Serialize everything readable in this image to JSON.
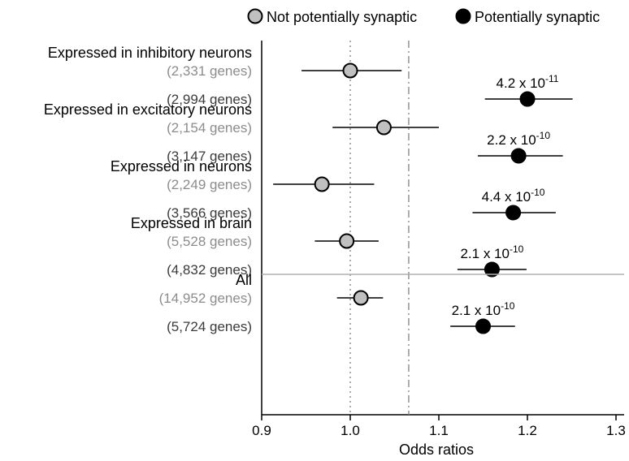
{
  "chart_data": {
    "type": "forest",
    "xlabel": "Odds ratios",
    "xlim": [
      0.9,
      1.31
    ],
    "xticks": [
      0.9,
      1.0,
      1.1,
      1.2,
      1.3
    ],
    "xtick_labels": [
      "0.9",
      "1.0",
      "1.1",
      "1.2",
      "1.3"
    ],
    "reference_lines": [
      {
        "x": 1.0,
        "style": "dotted"
      },
      {
        "x": 1.066,
        "style": "dash-dot"
      }
    ],
    "legend": {
      "placement": "top",
      "entries": [
        {
          "label": "Not potentially synaptic",
          "color": "#c0c0c0"
        },
        {
          "label": "Potentially synaptic",
          "color": "#000000"
        }
      ]
    },
    "groups": [
      {
        "label": "Expressed in inhibitory neurons",
        "rows": [
          {
            "series": "Not potentially synaptic",
            "count_label": "(2,331 genes)",
            "or": 1.0,
            "ci": [
              0.945,
              1.058
            ]
          },
          {
            "series": "Potentially synaptic",
            "count_label": "(2,994 genes)",
            "or": 1.2,
            "ci": [
              1.152,
              1.251
            ],
            "p_base": "4.2 x 10",
            "p_exp": "-11"
          }
        ]
      },
      {
        "label": "Expressed in excitatory neurons",
        "rows": [
          {
            "series": "Not potentially synaptic",
            "count_label": "(2,154 genes)",
            "or": 1.038,
            "ci": [
              0.98,
              1.1
            ]
          },
          {
            "series": "Potentially synaptic",
            "count_label": "(3,147 genes)",
            "or": 1.19,
            "ci": [
              1.144,
              1.24
            ],
            "p_base": "2.2 x 10",
            "p_exp": "-10"
          }
        ]
      },
      {
        "label": "Expressed in neurons",
        "rows": [
          {
            "series": "Not potentially synaptic",
            "count_label": "(2,249 genes)",
            "or": 0.968,
            "ci": [
              0.913,
              1.027
            ]
          },
          {
            "series": "Potentially synaptic",
            "count_label": "(3,566 genes)",
            "or": 1.184,
            "ci": [
              1.138,
              1.232
            ],
            "p_base": "4.4 x 10",
            "p_exp": "-10"
          }
        ]
      },
      {
        "label": "Expressed in brain",
        "rows": [
          {
            "series": "Not potentially synaptic",
            "count_label": "(5,528 genes)",
            "or": 0.996,
            "ci": [
              0.96,
              1.032
            ]
          },
          {
            "series": "Potentially synaptic",
            "count_label": "(4,832 genes)",
            "or": 1.16,
            "ci": [
              1.121,
              1.199
            ],
            "p_base": "2.1 x 10",
            "p_exp": "-10"
          }
        ]
      },
      {
        "label": "All",
        "rows": [
          {
            "series": "Not potentially synaptic",
            "count_label": "(14,952 genes)",
            "or": 1.012,
            "ci": [
              0.985,
              1.037
            ]
          },
          {
            "series": "Potentially synaptic",
            "count_label": "(5,724 genes)",
            "or": 1.15,
            "ci": [
              1.113,
              1.186
            ],
            "p_base": "2.1 x 10",
            "p_exp": "-10"
          }
        ]
      }
    ],
    "separator_before_group": "All"
  },
  "colors": {
    "not_synaptic_fill": "#c0c0c0",
    "not_synaptic_label": "#8c8c8c",
    "synaptic_fill": "#000000",
    "synaptic_label": "#3a3a3a",
    "ref_line": "#8a8a8a",
    "separator": "#b0b0b0"
  }
}
